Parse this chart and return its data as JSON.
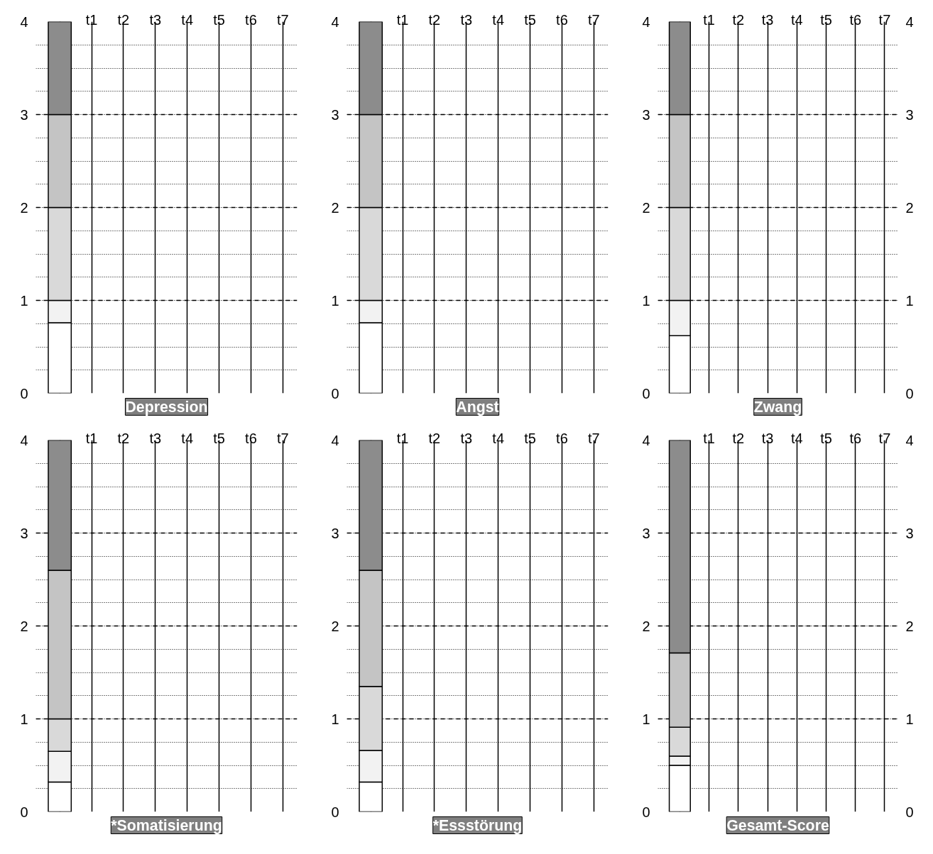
{
  "chart_data": [
    {
      "type": "bar",
      "stacked": true,
      "title": "Depression",
      "categories": [
        null,
        "t1",
        "t2",
        "t3",
        "t4",
        "t5",
        "t6",
        "t7"
      ],
      "ylim": [
        0,
        4
      ],
      "yticks": [
        0,
        1,
        2,
        3,
        4
      ],
      "grid": true,
      "series": [
        {
          "color": "#ffffff",
          "values": [
            0.76,
            null,
            null,
            null,
            null,
            null,
            null,
            null
          ]
        },
        {
          "color": "#f2f2f2",
          "values": [
            0.24,
            null,
            null,
            null,
            null,
            null,
            null,
            null
          ]
        },
        {
          "color": "#d9d9d9",
          "values": [
            1.0,
            null,
            null,
            null,
            null,
            null,
            null,
            null
          ]
        },
        {
          "color": "#c4c4c4",
          "values": [
            1.0,
            null,
            null,
            null,
            null,
            null,
            null,
            null
          ]
        },
        {
          "color": "#8c8c8c",
          "values": [
            1.0,
            null,
            null,
            null,
            null,
            null,
            null,
            null
          ]
        }
      ]
    },
    {
      "type": "bar",
      "stacked": true,
      "title": "Angst",
      "categories": [
        null,
        "t1",
        "t2",
        "t3",
        "t4",
        "t5",
        "t6",
        "t7"
      ],
      "ylim": [
        0,
        4
      ],
      "yticks": [
        0,
        1,
        2,
        3,
        4
      ],
      "grid": true,
      "series": [
        {
          "color": "#ffffff",
          "values": [
            0.76,
            null,
            null,
            null,
            null,
            null,
            null,
            null
          ]
        },
        {
          "color": "#f2f2f2",
          "values": [
            0.24,
            null,
            null,
            null,
            null,
            null,
            null,
            null
          ]
        },
        {
          "color": "#d9d9d9",
          "values": [
            1.0,
            null,
            null,
            null,
            null,
            null,
            null,
            null
          ]
        },
        {
          "color": "#c4c4c4",
          "values": [
            1.0,
            null,
            null,
            null,
            null,
            null,
            null,
            null
          ]
        },
        {
          "color": "#8c8c8c",
          "values": [
            1.0,
            null,
            null,
            null,
            null,
            null,
            null,
            null
          ]
        }
      ]
    },
    {
      "type": "bar",
      "stacked": true,
      "title": "Zwang",
      "categories": [
        null,
        "t1",
        "t2",
        "t3",
        "t4",
        "t5",
        "t6",
        "t7"
      ],
      "ylim": [
        0,
        4
      ],
      "yticks": [
        0,
        1,
        2,
        3,
        4
      ],
      "y2lim": [
        0,
        4
      ],
      "y2ticks": [
        0,
        1,
        2,
        3,
        4
      ],
      "grid": true,
      "series": [
        {
          "color": "#ffffff",
          "values": [
            0.62,
            null,
            null,
            null,
            null,
            null,
            null,
            null
          ]
        },
        {
          "color": "#f2f2f2",
          "values": [
            0.38,
            null,
            null,
            null,
            null,
            null,
            null,
            null
          ]
        },
        {
          "color": "#d9d9d9",
          "values": [
            1.0,
            null,
            null,
            null,
            null,
            null,
            null,
            null
          ]
        },
        {
          "color": "#c4c4c4",
          "values": [
            1.0,
            null,
            null,
            null,
            null,
            null,
            null,
            null
          ]
        },
        {
          "color": "#8c8c8c",
          "values": [
            1.0,
            null,
            null,
            null,
            null,
            null,
            null,
            null
          ]
        }
      ]
    },
    {
      "type": "bar",
      "stacked": true,
      "title": "*Somatisierung",
      "categories": [
        null,
        "t1",
        "t2",
        "t3",
        "t4",
        "t5",
        "t6",
        "t7"
      ],
      "ylim": [
        0,
        4
      ],
      "yticks": [
        0,
        1,
        2,
        3,
        4
      ],
      "grid": true,
      "series": [
        {
          "color": "#ffffff",
          "values": [
            0.32,
            null,
            null,
            null,
            null,
            null,
            null,
            null
          ]
        },
        {
          "color": "#f2f2f2",
          "values": [
            0.33,
            null,
            null,
            null,
            null,
            null,
            null,
            null
          ]
        },
        {
          "color": "#d9d9d9",
          "values": [
            0.35,
            null,
            null,
            null,
            null,
            null,
            null,
            null
          ]
        },
        {
          "color": "#c4c4c4",
          "values": [
            1.6,
            null,
            null,
            null,
            null,
            null,
            null,
            null
          ]
        },
        {
          "color": "#8c8c8c",
          "values": [
            1.4,
            null,
            null,
            null,
            null,
            null,
            null,
            null
          ]
        }
      ]
    },
    {
      "type": "bar",
      "stacked": true,
      "title": "*Essstörung",
      "categories": [
        null,
        "t1",
        "t2",
        "t3",
        "t4",
        "t5",
        "t6",
        "t7"
      ],
      "ylim": [
        0,
        4
      ],
      "yticks": [
        0,
        1,
        2,
        3,
        4
      ],
      "grid": true,
      "series": [
        {
          "color": "#ffffff",
          "values": [
            0.32,
            null,
            null,
            null,
            null,
            null,
            null,
            null
          ]
        },
        {
          "color": "#f2f2f2",
          "values": [
            0.34,
            null,
            null,
            null,
            null,
            null,
            null,
            null
          ]
        },
        {
          "color": "#d9d9d9",
          "values": [
            0.69,
            null,
            null,
            null,
            null,
            null,
            null,
            null
          ]
        },
        {
          "color": "#c4c4c4",
          "values": [
            1.25,
            null,
            null,
            null,
            null,
            null,
            null,
            null
          ]
        },
        {
          "color": "#8c8c8c",
          "values": [
            1.4,
            null,
            null,
            null,
            null,
            null,
            null,
            null
          ]
        }
      ]
    },
    {
      "type": "bar",
      "stacked": true,
      "title": "Gesamt-Score",
      "categories": [
        null,
        "t1",
        "t2",
        "t3",
        "t4",
        "t5",
        "t6",
        "t7"
      ],
      "ylim": [
        0,
        4
      ],
      "yticks": [
        0,
        1,
        2,
        3,
        4
      ],
      "y2lim": [
        0,
        4
      ],
      "y2ticks": [
        0,
        1,
        2,
        3,
        4
      ],
      "grid": true,
      "series": [
        {
          "color": "#ffffff",
          "values": [
            0.5,
            null,
            null,
            null,
            null,
            null,
            null,
            null
          ]
        },
        {
          "color": "#f2f2f2",
          "values": [
            0.1,
            null,
            null,
            null,
            null,
            null,
            null,
            null
          ]
        },
        {
          "color": "#d9d9d9",
          "values": [
            0.31,
            null,
            null,
            null,
            null,
            null,
            null,
            null
          ]
        },
        {
          "color": "#c4c4c4",
          "values": [
            0.8,
            null,
            null,
            null,
            null,
            null,
            null,
            null
          ]
        },
        {
          "color": "#8c8c8c",
          "values": [
            2.29,
            null,
            null,
            null,
            null,
            null,
            null,
            null
          ]
        }
      ]
    }
  ]
}
